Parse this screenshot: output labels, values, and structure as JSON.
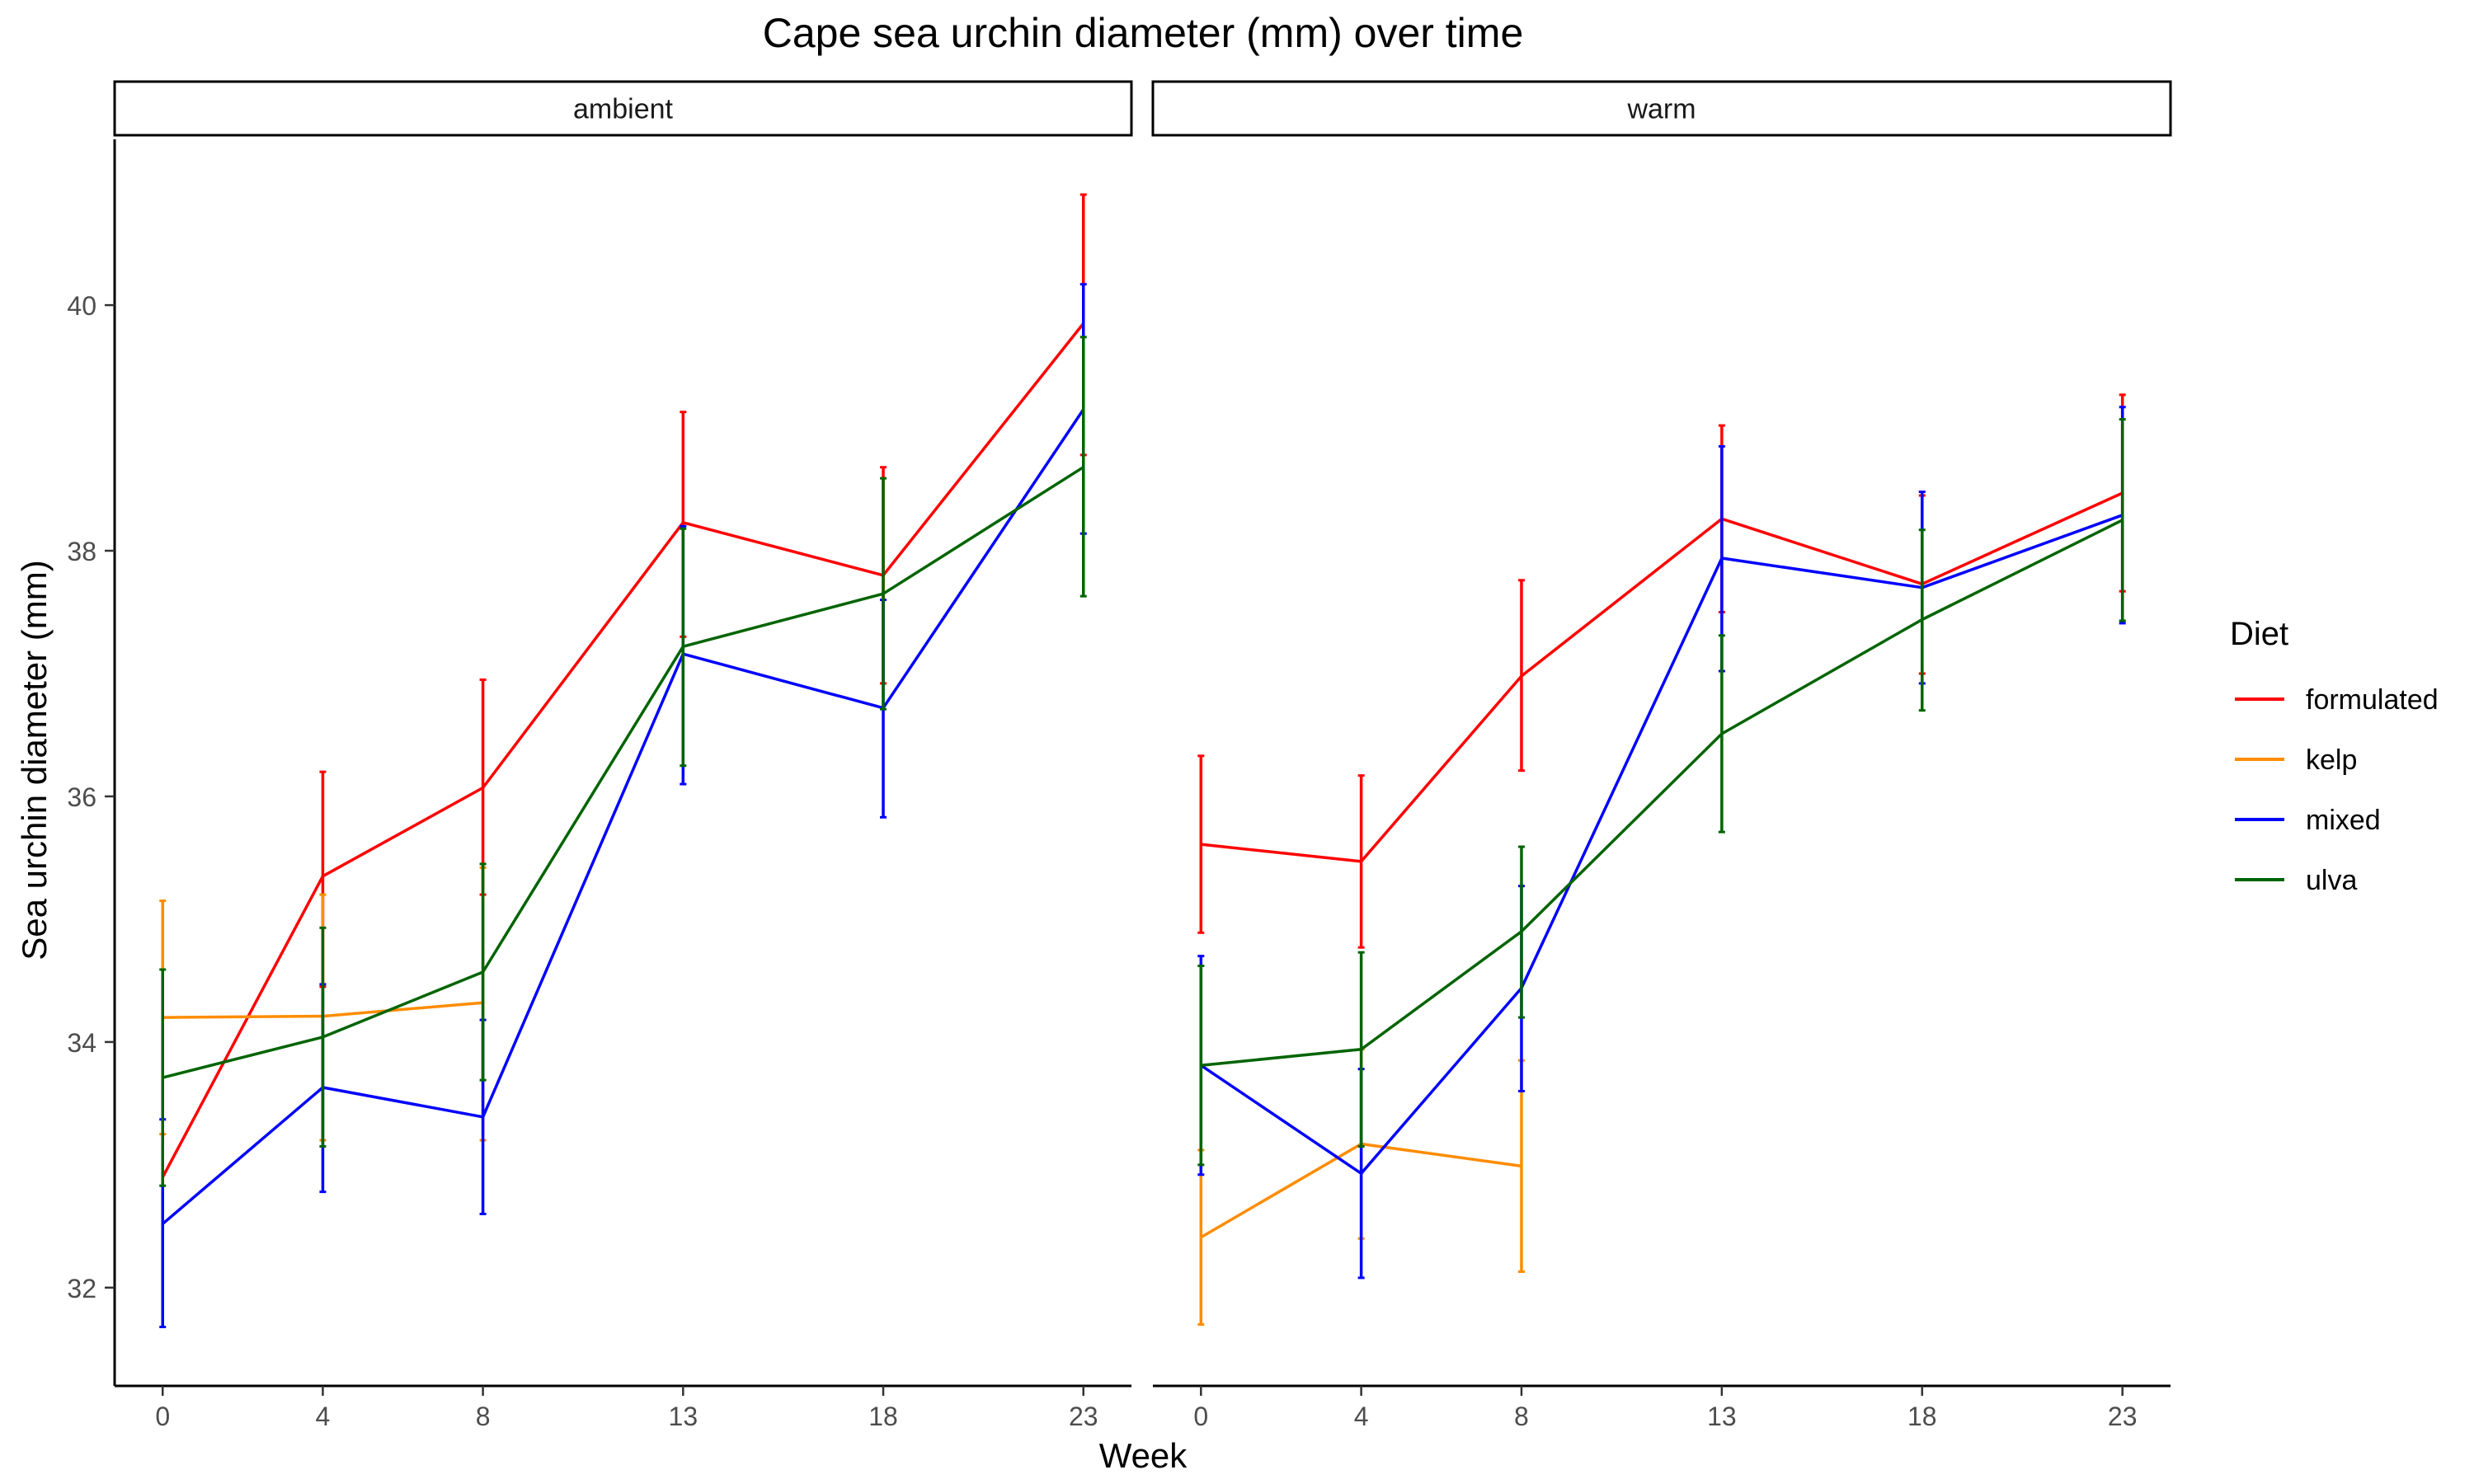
{
  "chart_data": {
    "type": "line",
    "title": "Cape sea urchin diameter (mm) over time",
    "xlabel": "Week",
    "ylabel": "Sea urchin diameter (mm)",
    "x": [
      0,
      4,
      8,
      13,
      18,
      23
    ],
    "xlim": [
      -1.2,
      24.2
    ],
    "ylim": [
      31.2,
      41.35
    ],
    "yticks": [
      32,
      34,
      36,
      38,
      40
    ],
    "grid": false,
    "legend": {
      "title": "Diet",
      "position": "right"
    },
    "panels": [
      {
        "label": "ambient",
        "series": [
          {
            "name": "formulated",
            "color": "#ff0000",
            "points": [
              {
                "x": 0,
                "y": 32.9,
                "lo": null,
                "hi": null
              },
              {
                "x": 4,
                "y": 35.35,
                "lo": 34.45,
                "hi": 36.2
              },
              {
                "x": 8,
                "y": 36.07,
                "lo": 35.2,
                "hi": 36.95
              },
              {
                "x": 13,
                "y": 38.23,
                "lo": 37.3,
                "hi": 39.13
              },
              {
                "x": 18,
                "y": 37.8,
                "lo": 36.92,
                "hi": 38.68
              },
              {
                "x": 23,
                "y": 39.85,
                "lo": 38.78,
                "hi": 40.9
              }
            ]
          },
          {
            "name": "kelp",
            "color": "#ff8c00",
            "points": [
              {
                "x": 0,
                "y": 34.2,
                "lo": 33.25,
                "hi": 35.15
              },
              {
                "x": 4,
                "y": 34.21,
                "lo": 33.2,
                "hi": 35.2
              },
              {
                "x": 8,
                "y": 34.32,
                "lo": 33.2,
                "hi": 35.42
              }
            ]
          },
          {
            "name": "mixed",
            "color": "#0000ff",
            "points": [
              {
                "x": 0,
                "y": 32.52,
                "lo": 31.68,
                "hi": 33.37
              },
              {
                "x": 4,
                "y": 33.63,
                "lo": 32.78,
                "hi": 34.47
              },
              {
                "x": 8,
                "y": 33.39,
                "lo": 32.6,
                "hi": 34.18
              },
              {
                "x": 13,
                "y": 37.16,
                "lo": 36.1,
                "hi": 38.2
              },
              {
                "x": 18,
                "y": 36.72,
                "lo": 35.83,
                "hi": 37.6
              },
              {
                "x": 23,
                "y": 39.15,
                "lo": 38.14,
                "hi": 40.17
              }
            ]
          },
          {
            "name": "ulva",
            "color": "#006400",
            "points": [
              {
                "x": 0,
                "y": 33.71,
                "lo": 32.83,
                "hi": 34.59
              },
              {
                "x": 4,
                "y": 34.04,
                "lo": 33.15,
                "hi": 34.93
              },
              {
                "x": 8,
                "y": 34.57,
                "lo": 33.69,
                "hi": 35.45
              },
              {
                "x": 13,
                "y": 37.22,
                "lo": 36.25,
                "hi": 38.18
              },
              {
                "x": 18,
                "y": 37.65,
                "lo": 36.71,
                "hi": 38.59
              },
              {
                "x": 23,
                "y": 38.68,
                "lo": 37.63,
                "hi": 39.74
              }
            ]
          }
        ]
      },
      {
        "label": "warm",
        "series": [
          {
            "name": "formulated",
            "color": "#ff0000",
            "points": [
              {
                "x": 0,
                "y": 35.61,
                "lo": 34.89,
                "hi": 36.33
              },
              {
                "x": 4,
                "y": 35.47,
                "lo": 34.77,
                "hi": 36.17
              },
              {
                "x": 8,
                "y": 36.98,
                "lo": 36.21,
                "hi": 37.76
              },
              {
                "x": 13,
                "y": 38.26,
                "lo": 37.5,
                "hi": 39.02
              },
              {
                "x": 18,
                "y": 37.73,
                "lo": 37.0,
                "hi": 38.45
              },
              {
                "x": 23,
                "y": 38.47,
                "lo": 37.67,
                "hi": 39.27
              }
            ]
          },
          {
            "name": "kelp",
            "color": "#ff8c00",
            "points": [
              {
                "x": 0,
                "y": 32.41,
                "lo": 31.7,
                "hi": 33.12
              },
              {
                "x": 4,
                "y": 33.17,
                "lo": 32.4,
                "hi": 33.94
              },
              {
                "x": 8,
                "y": 32.99,
                "lo": 32.13,
                "hi": 33.85
              }
            ]
          },
          {
            "name": "mixed",
            "color": "#0000ff",
            "points": [
              {
                "x": 0,
                "y": 33.81,
                "lo": 32.92,
                "hi": 34.7
              },
              {
                "x": 4,
                "y": 32.93,
                "lo": 32.08,
                "hi": 33.78
              },
              {
                "x": 8,
                "y": 34.44,
                "lo": 33.6,
                "hi": 35.27
              },
              {
                "x": 13,
                "y": 37.94,
                "lo": 37.02,
                "hi": 38.85
              },
              {
                "x": 18,
                "y": 37.7,
                "lo": 36.92,
                "hi": 38.48
              },
              {
                "x": 23,
                "y": 38.29,
                "lo": 37.41,
                "hi": 39.17
              }
            ]
          },
          {
            "name": "ulva",
            "color": "#006400",
            "points": [
              {
                "x": 0,
                "y": 33.81,
                "lo": 33.0,
                "hi": 34.62
              },
              {
                "x": 4,
                "y": 33.94,
                "lo": 33.15,
                "hi": 34.73
              },
              {
                "x": 8,
                "y": 34.9,
                "lo": 34.2,
                "hi": 35.59
              },
              {
                "x": 13,
                "y": 36.51,
                "lo": 35.71,
                "hi": 37.31
              },
              {
                "x": 18,
                "y": 37.44,
                "lo": 36.7,
                "hi": 38.17
              },
              {
                "x": 23,
                "y": 38.25,
                "lo": 37.43,
                "hi": 39.07
              }
            ]
          }
        ]
      }
    ]
  }
}
